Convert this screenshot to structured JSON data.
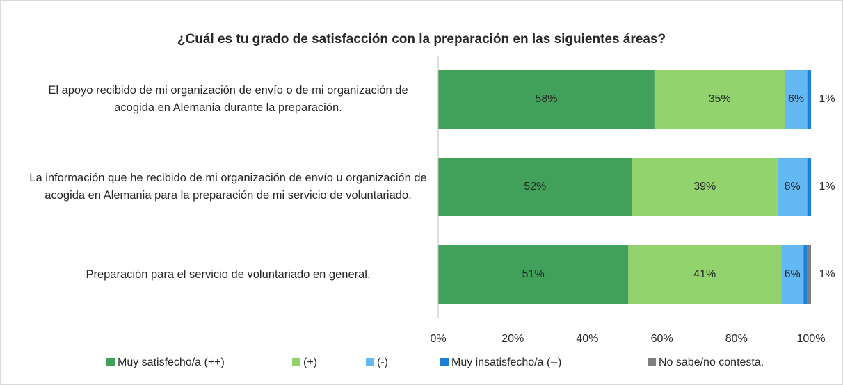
{
  "chart_data": {
    "type": "stacked_barh",
    "title": "¿Cuál es tu grado de satisfacción con la preparación en las siguientes áreas?",
    "categories": [
      "El apoyo recibido de mi organización de envío o de mi organización de acogida en Alemania durante la preparación.",
      "La información que he recibido de mi organización de envío u organización de acogida en Alemania para la preparación de mi servicio de voluntariado.",
      "Preparación para el servicio de voluntariado en general."
    ],
    "series": [
      {
        "name": "Muy satisfecho/a (++)",
        "color": "#41a15b",
        "values": [
          58,
          52,
          51
        ],
        "value_labels": [
          "58%",
          "52%",
          "51%"
        ]
      },
      {
        "name": "(+)",
        "color": "#92d36e",
        "values": [
          35,
          39,
          41
        ],
        "value_labels": [
          "35%",
          "39%",
          "41%"
        ]
      },
      {
        "name": "(-)",
        "color": "#64b9f4",
        "values": [
          6,
          8,
          6
        ],
        "value_labels": [
          "6%",
          "8%",
          "6%"
        ]
      },
      {
        "name": "Muy insatisfecho/a (--)",
        "color": "#1b80d8",
        "values": [
          1,
          1,
          1
        ],
        "value_labels": [
          "1%",
          "1%",
          "1%"
        ]
      },
      {
        "name": "No sabe/no contesta.",
        "color": "#7f7f7f",
        "values": [
          0,
          0,
          1
        ]
      }
    ],
    "xlim": [
      0,
      100
    ],
    "xticks": [
      {
        "value": 0,
        "label": "0%"
      },
      {
        "value": 20,
        "label": "20%"
      },
      {
        "value": 40,
        "label": "40%"
      },
      {
        "value": 60,
        "label": "60%"
      },
      {
        "value": 80,
        "label": "80%"
      },
      {
        "value": 100,
        "label": "100%"
      }
    ],
    "grid": false,
    "legend": "bottom"
  }
}
